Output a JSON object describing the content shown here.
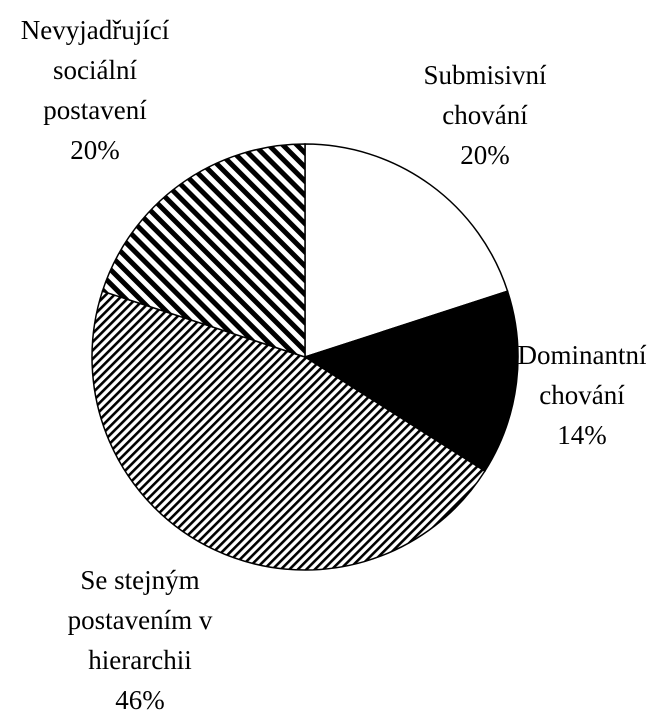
{
  "chart_data": {
    "type": "pie",
    "categories": [
      "Submisivní\nchování",
      "Dominantní\nchování",
      "Se stejným\npostavením v\nhierarchii",
      "Nevyjadřující\nsociální\npostavení"
    ],
    "values": [
      20,
      14,
      46,
      20
    ],
    "value_labels": [
      "20%",
      "14%",
      "46%",
      "20%"
    ],
    "fills": [
      "white",
      "black",
      "fine-diagonal",
      "bold-diagonal"
    ]
  }
}
